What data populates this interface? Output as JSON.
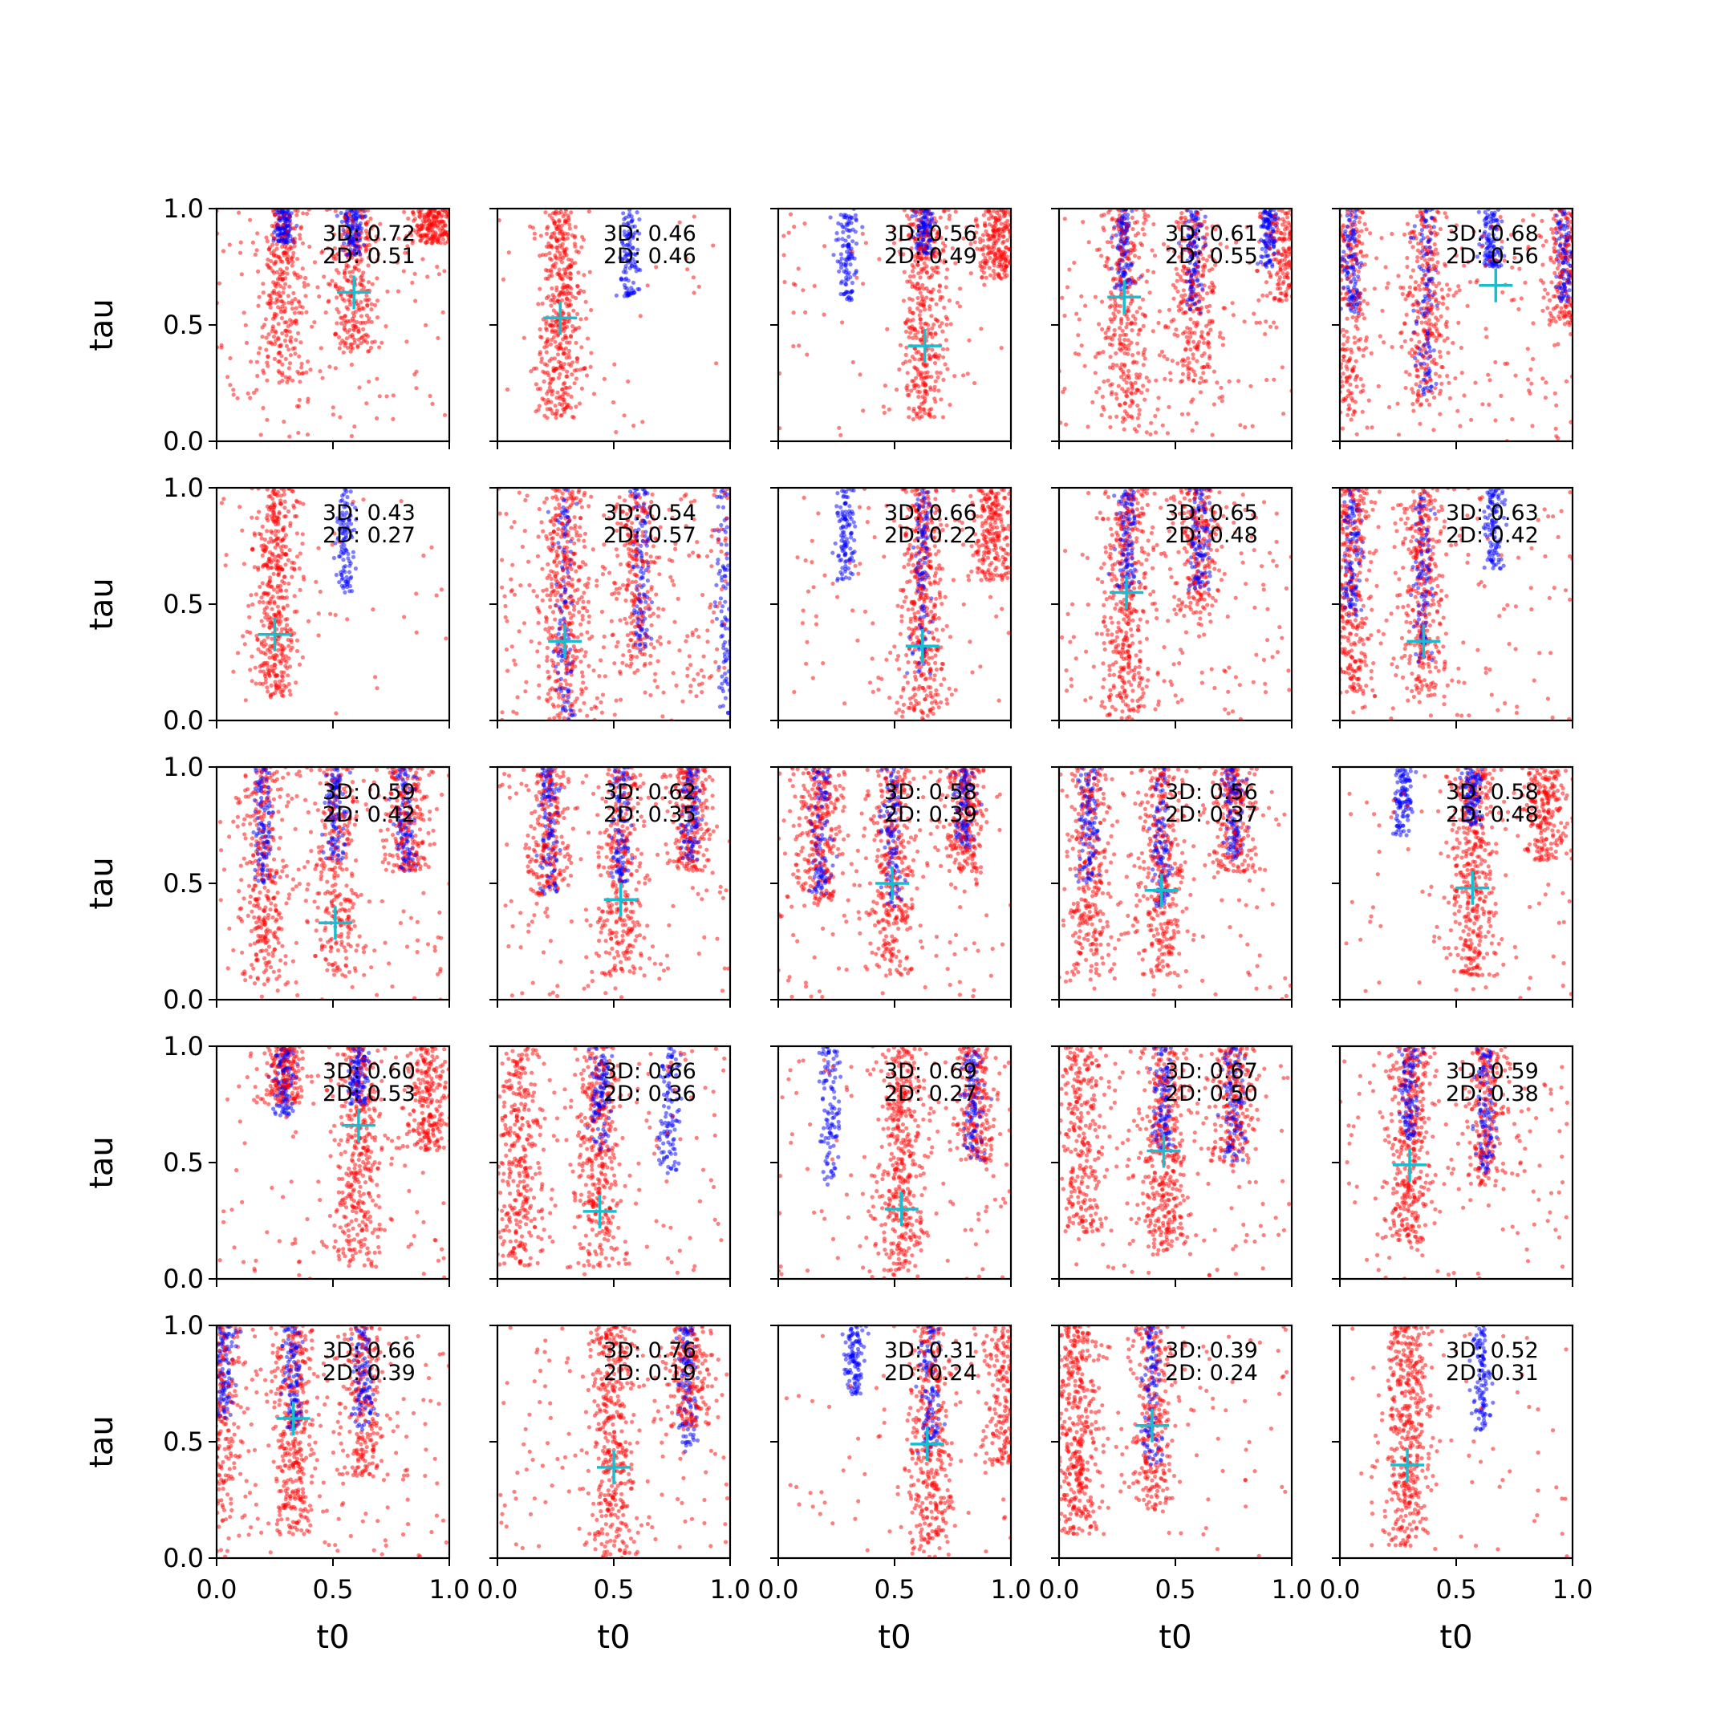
{
  "chart_data": {
    "type": "scatter",
    "grid": [
      5,
      5
    ],
    "xlabel": "t0",
    "ylabel": "tau",
    "xlim": [
      0.0,
      1.0
    ],
    "ylim": [
      0.0,
      1.0
    ],
    "xticks": [
      "0.0",
      "0.5",
      "1.0"
    ],
    "yticks": [
      "0.0",
      "0.5",
      "1.0"
    ],
    "grid_lines": false,
    "series_colors": {
      "red": "#ff0000",
      "blue": "#0000ff",
      "marker": "#17becf"
    },
    "panels": [
      {
        "ann3d": "3D: 0.72",
        "ann2d": "2D: 0.51",
        "marker": [
          0.59,
          0.64
        ],
        "red": [
          [
            0.28,
            0.25,
            0.15
          ],
          [
            0.59,
            0.38,
            0.13
          ],
          [
            0.93,
            0.85,
            0.05
          ]
        ],
        "blue": [
          [
            0.29,
            0.85,
            0.07
          ],
          [
            0.59,
            0.8,
            0.08
          ]
        ],
        "sparse": 150
      },
      {
        "ann3d": "3D: 0.46",
        "ann2d": "2D: 0.46",
        "marker": [
          0.27,
          0.53
        ],
        "red": [
          [
            0.27,
            0.1,
            0.48
          ]
        ],
        "blue": [
          [
            0.57,
            0.62,
            0.07
          ]
        ],
        "sparse": 30
      },
      {
        "ann3d": "3D: 0.56",
        "ann2d": "2D: 0.49",
        "marker": [
          0.63,
          0.41
        ],
        "red": [
          [
            0.63,
            0.1,
            0.3
          ],
          [
            0.94,
            0.7,
            0.08
          ]
        ],
        "blue": [
          [
            0.3,
            0.6,
            0.05
          ],
          [
            0.63,
            0.8,
            0.06
          ]
        ],
        "sparse": 60
      },
      {
        "ann3d": "3D: 0.61",
        "ann2d": "2D: 0.55",
        "marker": [
          0.28,
          0.62
        ],
        "red": [
          [
            0.28,
            0.05,
            0.15
          ],
          [
            0.58,
            0.25,
            0.12
          ],
          [
            0.98,
            0.6,
            0.06
          ]
        ],
        "blue": [
          [
            0.28,
            0.65,
            0.08
          ],
          [
            0.58,
            0.55,
            0.09
          ],
          [
            0.9,
            0.75,
            0.05
          ]
        ],
        "sparse": 160
      },
      {
        "ann3d": "3D: 0.68",
        "ann2d": "2D: 0.56",
        "marker": [
          0.67,
          0.67
        ],
        "red": [
          [
            0.04,
            0.05,
            0.1
          ],
          [
            0.37,
            0.15,
            0.12
          ],
          [
            0.97,
            0.5,
            0.06
          ]
        ],
        "blue": [
          [
            0.05,
            0.55,
            0.05
          ],
          [
            0.37,
            0.2,
            0.1
          ],
          [
            0.65,
            0.75,
            0.06
          ],
          [
            0.97,
            0.6,
            0.05
          ]
        ],
        "sparse": 160
      },
      {
        "ann3d": "3D: 0.43",
        "ann2d": "2D: 0.27",
        "marker": [
          0.25,
          0.37
        ],
        "red": [
          [
            0.25,
            0.1,
            0.42
          ]
        ],
        "blue": [
          [
            0.55,
            0.55,
            0.07
          ]
        ],
        "sparse": 40
      },
      {
        "ann3d": "3D: 0.54",
        "ann2d": "2D: 0.57",
        "marker": [
          0.29,
          0.34
        ],
        "red": [
          [
            0.29,
            0.0,
            0.2
          ],
          [
            0.6,
            0.2,
            0.06
          ]
        ],
        "blue": [
          [
            0.29,
            0.0,
            0.1
          ],
          [
            0.62,
            0.3,
            0.04
          ],
          [
            0.98,
            0.0,
            0.04
          ]
        ],
        "sparse": 280
      },
      {
        "ann3d": "3D: 0.66",
        "ann2d": "2D: 0.22",
        "marker": [
          0.62,
          0.32
        ],
        "red": [
          [
            0.62,
            0.0,
            0.28
          ],
          [
            0.92,
            0.6,
            0.08
          ]
        ],
        "blue": [
          [
            0.29,
            0.6,
            0.04
          ],
          [
            0.62,
            0.2,
            0.07
          ]
        ],
        "sparse": 90
      },
      {
        "ann3d": "3D: 0.65",
        "ann2d": "2D: 0.48",
        "marker": [
          0.29,
          0.55
        ],
        "red": [
          [
            0.29,
            0.0,
            0.25
          ],
          [
            0.6,
            0.45,
            0.08
          ]
        ],
        "blue": [
          [
            0.29,
            0.55,
            0.1
          ],
          [
            0.6,
            0.55,
            0.08
          ]
        ],
        "sparse": 150
      },
      {
        "ann3d": "3D: 0.63",
        "ann2d": "2D: 0.42",
        "marker": [
          0.36,
          0.34
        ],
        "red": [
          [
            0.05,
            0.1,
            0.2
          ],
          [
            0.36,
            0.1,
            0.18
          ]
        ],
        "blue": [
          [
            0.05,
            0.45,
            0.06
          ],
          [
            0.36,
            0.25,
            0.12
          ],
          [
            0.66,
            0.65,
            0.05
          ]
        ],
        "sparse": 120
      },
      {
        "ann3d": "3D: 0.59",
        "ann2d": "2D: 0.42",
        "marker": [
          0.51,
          0.33
        ],
        "red": [
          [
            0.2,
            0.05,
            0.15
          ],
          [
            0.51,
            0.1,
            0.12
          ],
          [
            0.81,
            0.55,
            0.07
          ]
        ],
        "blue": [
          [
            0.2,
            0.5,
            0.07
          ],
          [
            0.51,
            0.6,
            0.07
          ],
          [
            0.81,
            0.55,
            0.05
          ]
        ],
        "sparse": 150
      },
      {
        "ann3d": "3D: 0.62",
        "ann2d": "2D: 0.35",
        "marker": [
          0.53,
          0.43
        ],
        "red": [
          [
            0.22,
            0.45,
            0.08
          ],
          [
            0.53,
            0.1,
            0.18
          ],
          [
            0.83,
            0.55,
            0.08
          ]
        ],
        "blue": [
          [
            0.22,
            0.45,
            0.05
          ],
          [
            0.53,
            0.5,
            0.07
          ],
          [
            0.83,
            0.6,
            0.04
          ]
        ],
        "sparse": 120
      },
      {
        "ann3d": "3D: 0.58",
        "ann2d": "2D: 0.39",
        "marker": [
          0.49,
          0.5
        ],
        "red": [
          [
            0.18,
            0.4,
            0.12
          ],
          [
            0.49,
            0.1,
            0.18
          ],
          [
            0.8,
            0.55,
            0.08
          ]
        ],
        "blue": [
          [
            0.18,
            0.45,
            0.08
          ],
          [
            0.49,
            0.4,
            0.1
          ],
          [
            0.8,
            0.65,
            0.05
          ]
        ],
        "sparse": 150
      },
      {
        "ann3d": "3D: 0.56",
        "ann2d": "2D: 0.37",
        "marker": [
          0.44,
          0.47
        ],
        "red": [
          [
            0.13,
            0.1,
            0.15
          ],
          [
            0.44,
            0.1,
            0.18
          ],
          [
            0.75,
            0.55,
            0.06
          ]
        ],
        "blue": [
          [
            0.13,
            0.5,
            0.06
          ],
          [
            0.44,
            0.4,
            0.08
          ],
          [
            0.75,
            0.6,
            0.04
          ]
        ],
        "sparse": 130
      },
      {
        "ann3d": "3D: 0.58",
        "ann2d": "2D: 0.48",
        "marker": [
          0.57,
          0.48
        ],
        "red": [
          [
            0.57,
            0.1,
            0.28
          ],
          [
            0.88,
            0.6,
            0.08
          ]
        ],
        "blue": [
          [
            0.27,
            0.7,
            0.04
          ],
          [
            0.57,
            0.75,
            0.05
          ]
        ],
        "sparse": 90
      },
      {
        "ann3d": "3D: 0.60",
        "ann2d": "2D: 0.53",
        "marker": [
          0.61,
          0.66
        ],
        "red": [
          [
            0.29,
            0.75,
            0.05
          ],
          [
            0.61,
            0.05,
            0.25
          ],
          [
            0.91,
            0.55,
            0.1
          ]
        ],
        "blue": [
          [
            0.29,
            0.7,
            0.05
          ],
          [
            0.61,
            0.75,
            0.05
          ]
        ],
        "sparse": 100
      },
      {
        "ann3d": "3D: 0.66",
        "ann2d": "2D: 0.36",
        "marker": [
          0.44,
          0.29
        ],
        "red": [
          [
            0.1,
            0.05,
            0.18
          ],
          [
            0.44,
            0.05,
            0.22
          ]
        ],
        "blue": [
          [
            0.44,
            0.55,
            0.05
          ],
          [
            0.74,
            0.45,
            0.08
          ]
        ],
        "sparse": 130
      },
      {
        "ann3d": "3D: 0.69",
        "ann2d": "2D: 0.27",
        "marker": [
          0.53,
          0.3
        ],
        "red": [
          [
            0.53,
            0.0,
            0.28
          ],
          [
            0.85,
            0.5,
            0.06
          ]
        ],
        "blue": [
          [
            0.22,
            0.4,
            0.1
          ],
          [
            0.84,
            0.5,
            0.04
          ]
        ],
        "sparse": 130
      },
      {
        "ann3d": "3D: 0.67",
        "ann2d": "2D: 0.50",
        "marker": [
          0.45,
          0.55
        ],
        "red": [
          [
            0.1,
            0.2,
            0.12
          ],
          [
            0.45,
            0.1,
            0.25
          ],
          [
            0.75,
            0.5,
            0.06
          ]
        ],
        "blue": [
          [
            0.45,
            0.55,
            0.1
          ],
          [
            0.75,
            0.5,
            0.06
          ]
        ],
        "sparse": 130
      },
      {
        "ann3d": "3D: 0.59",
        "ann2d": "2D: 0.38",
        "marker": [
          0.3,
          0.49
        ],
        "red": [
          [
            0.3,
            0.15,
            0.25
          ],
          [
            0.63,
            0.4,
            0.06
          ]
        ],
        "blue": [
          [
            0.3,
            0.6,
            0.07
          ],
          [
            0.63,
            0.45,
            0.08
          ]
        ],
        "sparse": 130
      },
      {
        "ann3d": "3D: 0.66",
        "ann2d": "2D: 0.39",
        "marker": [
          0.33,
          0.6
        ],
        "red": [
          [
            0.02,
            0.1,
            0.12
          ],
          [
            0.33,
            0.1,
            0.22
          ],
          [
            0.63,
            0.35,
            0.07
          ]
        ],
        "blue": [
          [
            0.03,
            0.6,
            0.06
          ],
          [
            0.33,
            0.55,
            0.07
          ],
          [
            0.63,
            0.55,
            0.05
          ]
        ],
        "sparse": 150
      },
      {
        "ann3d": "3D: 0.76",
        "ann2d": "2D: 0.19",
        "marker": [
          0.5,
          0.39
        ],
        "red": [
          [
            0.5,
            0.0,
            0.28
          ],
          [
            0.82,
            0.55,
            0.06
          ]
        ],
        "blue": [
          [
            0.82,
            0.45,
            0.08
          ]
        ],
        "sparse": 120
      },
      {
        "ann3d": "3D: 0.31",
        "ann2d": "2D: 0.24",
        "marker": [
          0.64,
          0.49
        ],
        "red": [
          [
            0.65,
            0.0,
            0.25
          ],
          [
            0.97,
            0.4,
            0.1
          ]
        ],
        "blue": [
          [
            0.33,
            0.7,
            0.04
          ],
          [
            0.65,
            0.45,
            0.08
          ]
        ],
        "sparse": 60
      },
      {
        "ann3d": "3D: 0.39",
        "ann2d": "2D: 0.24",
        "marker": [
          0.4,
          0.57
        ],
        "red": [
          [
            0.08,
            0.1,
            0.3
          ],
          [
            0.4,
            0.2,
            0.12
          ]
        ],
        "blue": [
          [
            0.4,
            0.4,
            0.06
          ]
        ],
        "sparse": 80
      },
      {
        "ann3d": "3D: 0.52",
        "ann2d": "2D: 0.31",
        "marker": [
          0.29,
          0.4
        ],
        "red": [
          [
            0.29,
            0.05,
            0.32
          ]
        ],
        "blue": [
          [
            0.61,
            0.55,
            0.08
          ]
        ],
        "sparse": 60
      }
    ]
  }
}
